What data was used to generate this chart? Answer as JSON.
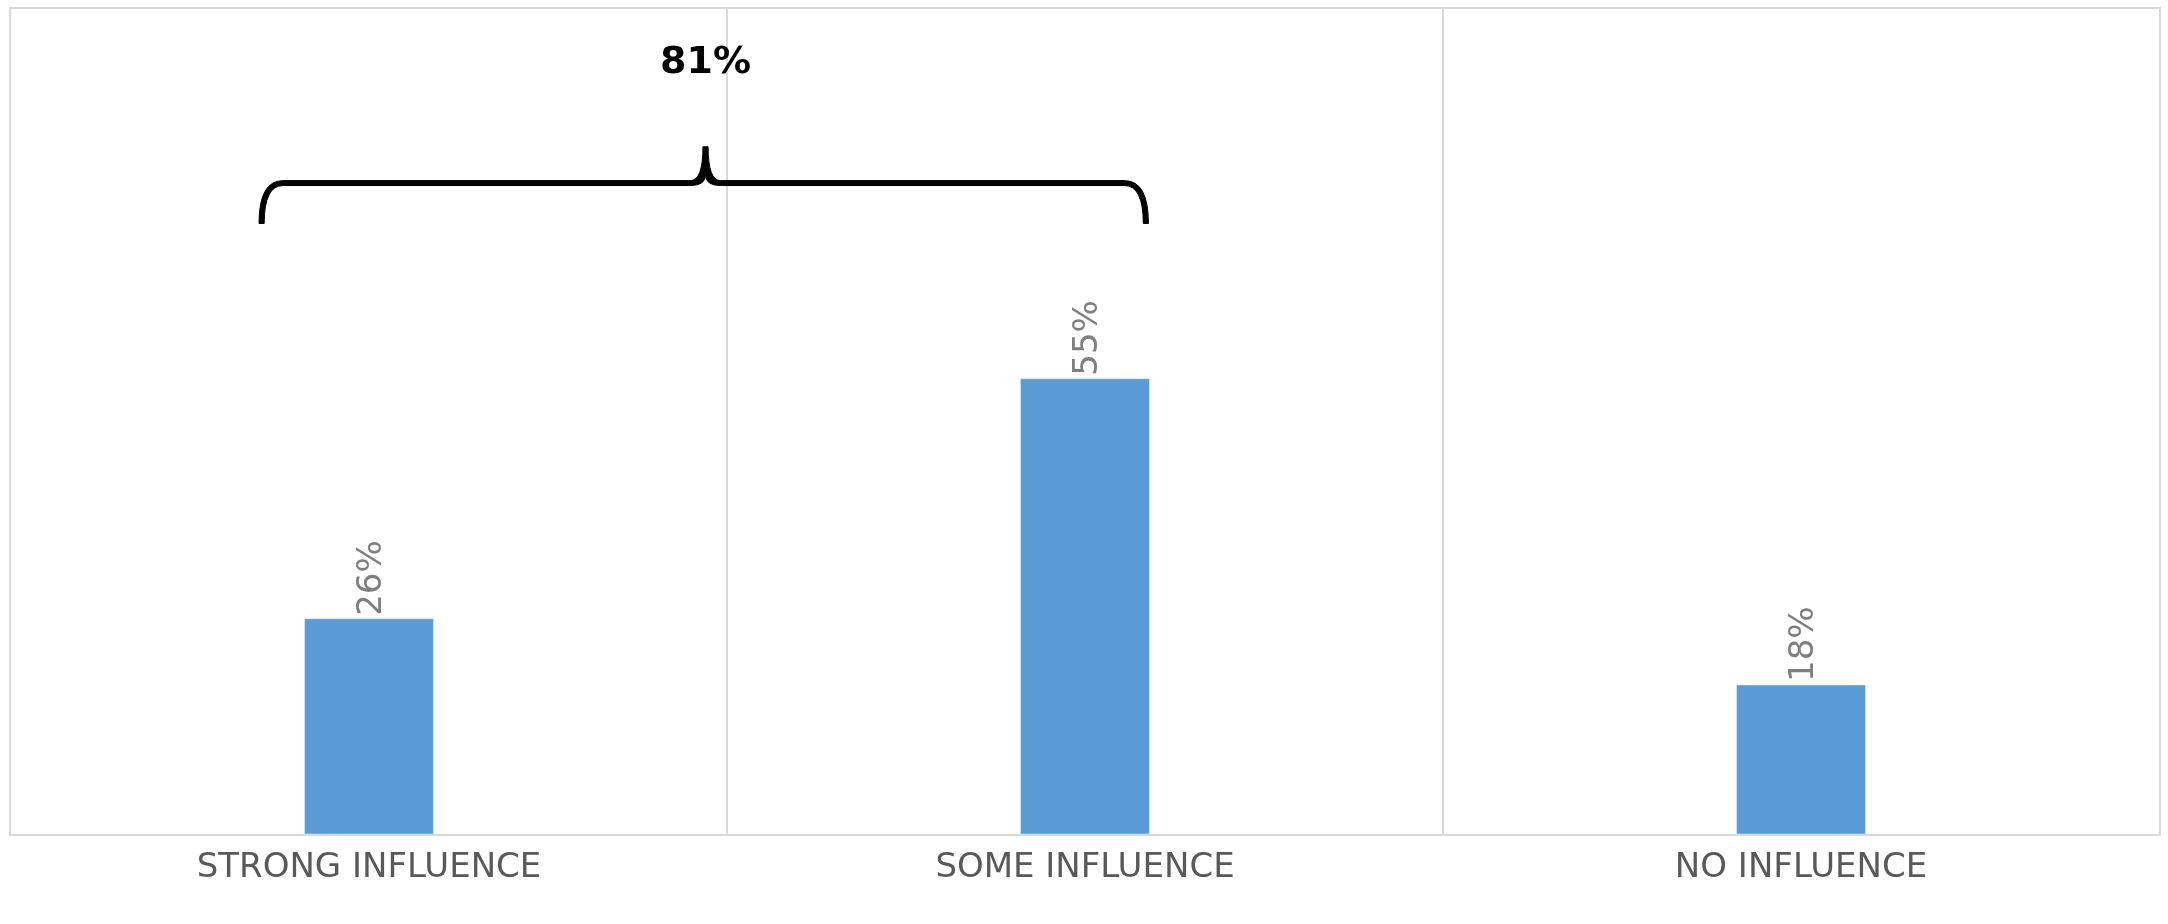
{
  "chart_data": {
    "type": "bar",
    "categories": [
      "STRONG INFLUENCE",
      "SOME INFLUENCE",
      "NO INFLUENCE"
    ],
    "values": [
      26,
      55,
      18
    ],
    "color": "#5b9bd5",
    "value_labels": [
      "26%",
      "55%",
      "18%"
    ],
    "grid": "x",
    "tick_labels": "x",
    "annotations": [
      "81%"
    ]
  }
}
